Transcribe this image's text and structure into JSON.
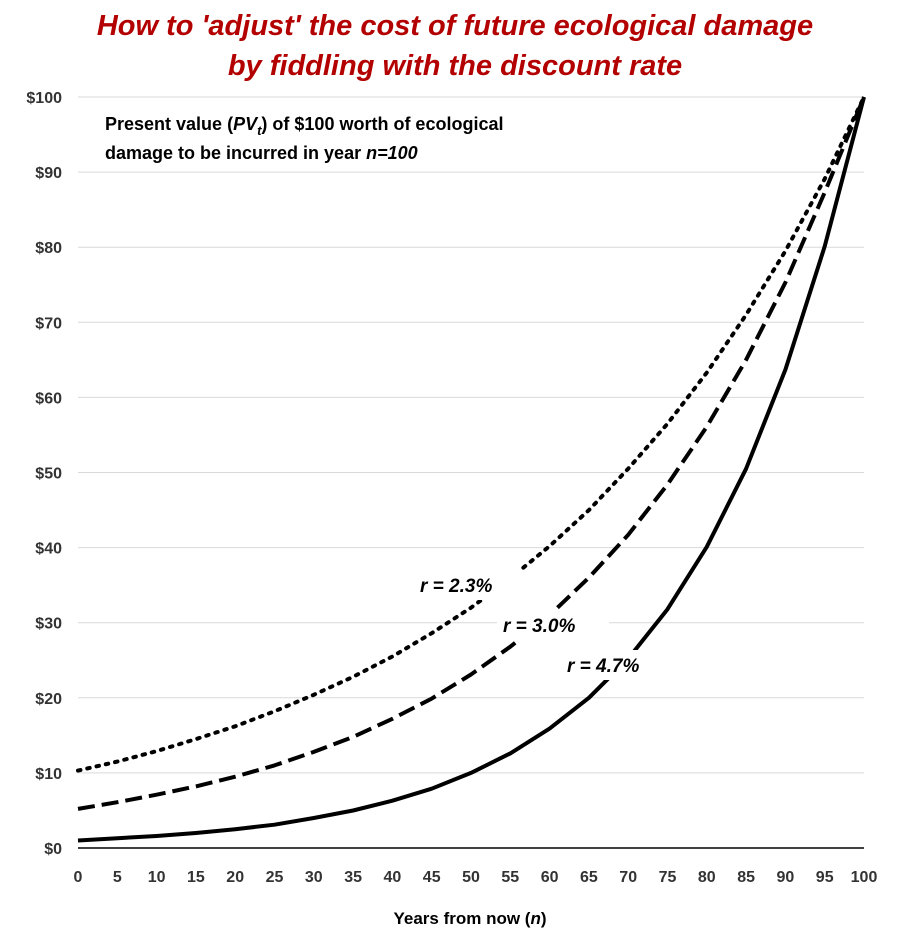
{
  "title": {
    "line1": "How to 'adjust' the cost of future ecological damage",
    "line2": "by fiddling with the discount rate"
  },
  "chart_data": {
    "type": "line",
    "title": "How to 'adjust' the cost of future ecological damage by fiddling with the discount rate",
    "xlabel": "Years from now (n)",
    "ylabel": "",
    "xlim": [
      0,
      100
    ],
    "ylim": [
      0,
      100
    ],
    "x_ticks": [
      0,
      5,
      10,
      15,
      20,
      25,
      30,
      35,
      40,
      45,
      50,
      55,
      60,
      65,
      70,
      75,
      80,
      85,
      90,
      95,
      100
    ],
    "y_ticks": [
      0,
      10,
      20,
      30,
      40,
      50,
      60,
      70,
      80,
      90,
      100
    ],
    "y_tick_labels": [
      "$0",
      "$10",
      "$20",
      "$30",
      "$40",
      "$50",
      "$60",
      "$70",
      "$80",
      "$90",
      "$100"
    ],
    "grid": "horizontal",
    "annotation": {
      "line1_pre": "Present value (",
      "line1_pv": "PV",
      "line1_sub": "t",
      "line1_post": ") of $100 worth of ecological",
      "line2_pre": "damage to be incurred in year ",
      "line2_n": "n=100"
    },
    "x_label_parts": {
      "pre": "Years from now (",
      "var": "n",
      "post": ")"
    },
    "series": [
      {
        "name": "r = 2.3%",
        "style": "dotted",
        "x": [
          0,
          5,
          10,
          15,
          20,
          25,
          30,
          35,
          40,
          45,
          50,
          55,
          60,
          65,
          70,
          75,
          80,
          85,
          90,
          95,
          100
        ],
        "values": [
          10.3,
          11.5,
          12.9,
          14.5,
          16.2,
          18.2,
          20.4,
          22.8,
          25.5,
          28.6,
          32.0,
          35.9,
          40.2,
          45.0,
          50.5,
          56.5,
          63.3,
          71.0,
          79.5,
          89.1,
          100
        ]
      },
      {
        "name": "r = 3.0%",
        "style": "dashed",
        "x": [
          0,
          5,
          10,
          15,
          20,
          25,
          30,
          35,
          40,
          45,
          50,
          55,
          60,
          65,
          70,
          75,
          80,
          85,
          90,
          95,
          100
        ],
        "values": [
          5.2,
          6.1,
          7.1,
          8.2,
          9.5,
          11.0,
          12.8,
          14.8,
          17.2,
          19.9,
          23.1,
          26.8,
          31.0,
          36.0,
          41.7,
          48.4,
          56.1,
          65.0,
          75.3,
          87.3,
          100
        ]
      },
      {
        "name": "r = 4.7%",
        "style": "solid",
        "x": [
          0,
          5,
          10,
          15,
          20,
          25,
          30,
          35,
          40,
          45,
          50,
          55,
          60,
          65,
          70,
          75,
          80,
          85,
          90,
          95,
          100
        ],
        "values": [
          1.0,
          1.3,
          1.6,
          2.0,
          2.5,
          3.1,
          4.0,
          5.0,
          6.3,
          7.9,
          10.0,
          12.6,
          15.9,
          20.0,
          25.2,
          31.8,
          40.1,
          50.5,
          63.7,
          80.1,
          100
        ]
      }
    ]
  }
}
